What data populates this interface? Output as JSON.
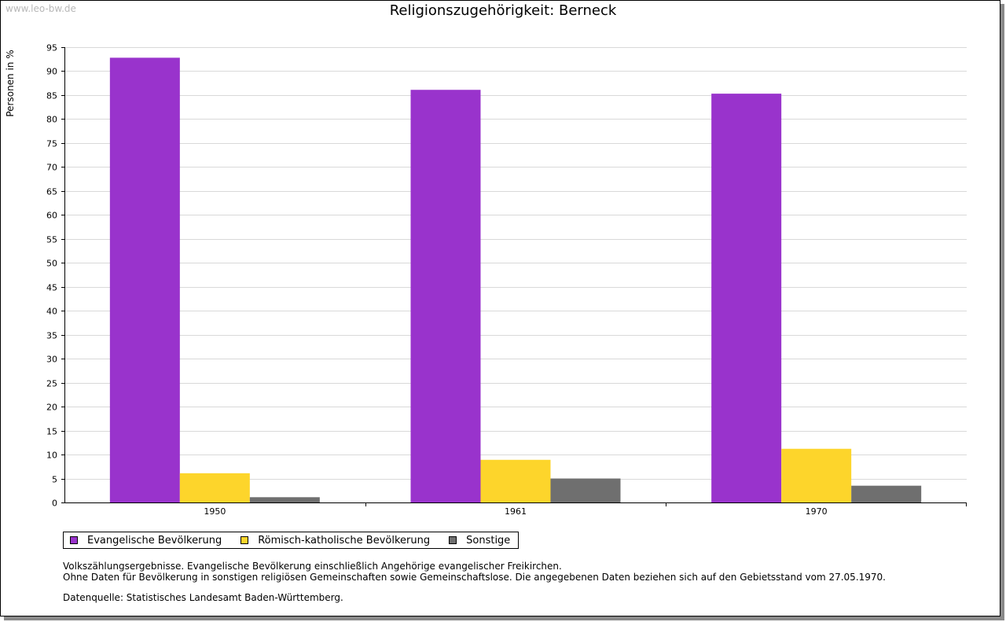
{
  "watermark": "www.leo-bw.de",
  "chart_data": {
    "type": "bar",
    "title": "Religionszugehörigkeit: Berneck",
    "xlabel": "",
    "ylabel": "Personen in %",
    "ylim": [
      0,
      95
    ],
    "yticks": [
      0,
      5,
      10,
      15,
      20,
      25,
      30,
      35,
      40,
      45,
      50,
      55,
      60,
      65,
      70,
      75,
      80,
      85,
      90,
      95
    ],
    "grid": true,
    "categories": [
      "1950",
      "1961",
      "1970"
    ],
    "series": [
      {
        "name": "Evangelische Bevölkerung",
        "color": "#9933cc",
        "values": [
          92.8,
          86.1,
          85.3
        ]
      },
      {
        "name": "Römisch-katholische Bevölkerung",
        "color": "#fdd52b",
        "values": [
          6.1,
          8.9,
          11.2
        ]
      },
      {
        "name": "Sonstige",
        "color": "#6f6f6f",
        "values": [
          1.1,
          5.0,
          3.5
        ]
      }
    ],
    "legend_position": "bottom-left"
  },
  "notes": {
    "line1": "Volkszählungsergebnisse. Evangelische Bevölkerung einschließlich Angehörige evangelischer Freikirchen.",
    "line2": "Ohne Daten für Bevölkerung in sonstigen religiösen Gemeinschaften sowie Gemeinschaftslose. Die angegebenen Daten beziehen sich auf den Gebietsstand vom 27.05.1970.",
    "source": "Datenquelle: Statistisches Landesamt Baden-Württemberg."
  }
}
